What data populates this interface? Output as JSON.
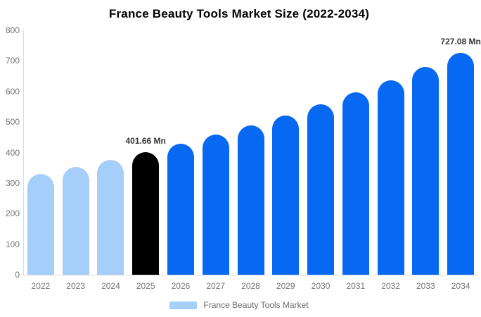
{
  "title": "France Beauty Tools Market Size (2022-2034)",
  "chart_data": {
    "type": "bar",
    "title": "France Beauty Tools Market Size (2022-2034)",
    "categories": [
      "2022",
      "2023",
      "2024",
      "2025",
      "2026",
      "2027",
      "2028",
      "2029",
      "2030",
      "2031",
      "2032",
      "2033",
      "2034"
    ],
    "values": [
      330,
      352,
      375,
      401.66,
      429,
      458,
      489,
      522,
      558,
      596,
      637,
      680,
      727.08
    ],
    "bar_colors": [
      "#A6CEFA",
      "#A6CEFA",
      "#A6CEFA",
      "#000000",
      "#0769F2",
      "#0769F2",
      "#0769F2",
      "#0769F2",
      "#0769F2",
      "#0769F2",
      "#0769F2",
      "#0769F2",
      "#0769F2"
    ],
    "annotations": [
      {
        "category": "2025",
        "text": "401.66 Mn"
      },
      {
        "category": "2034",
        "text": "727.08 Mn"
      }
    ],
    "xlabel": "",
    "ylabel": "",
    "ylim": [
      0,
      800
    ],
    "yticks": [
      0,
      100,
      200,
      300,
      400,
      500,
      600,
      700,
      800
    ],
    "grid": false,
    "legend": {
      "position": "bottom",
      "items": [
        {
          "label": "France Beauty Tools Market",
          "color": "#A6CEFA"
        }
      ]
    },
    "colors": {
      "historical": "#A6CEFA",
      "base_year": "#000000",
      "forecast": "#0769F2",
      "axis_line": "#dbdbdb",
      "tick_label": "#757575",
      "annotation_text": "#333333",
      "legend_text": "#6b6b6b",
      "background": "#ffffff"
    }
  }
}
